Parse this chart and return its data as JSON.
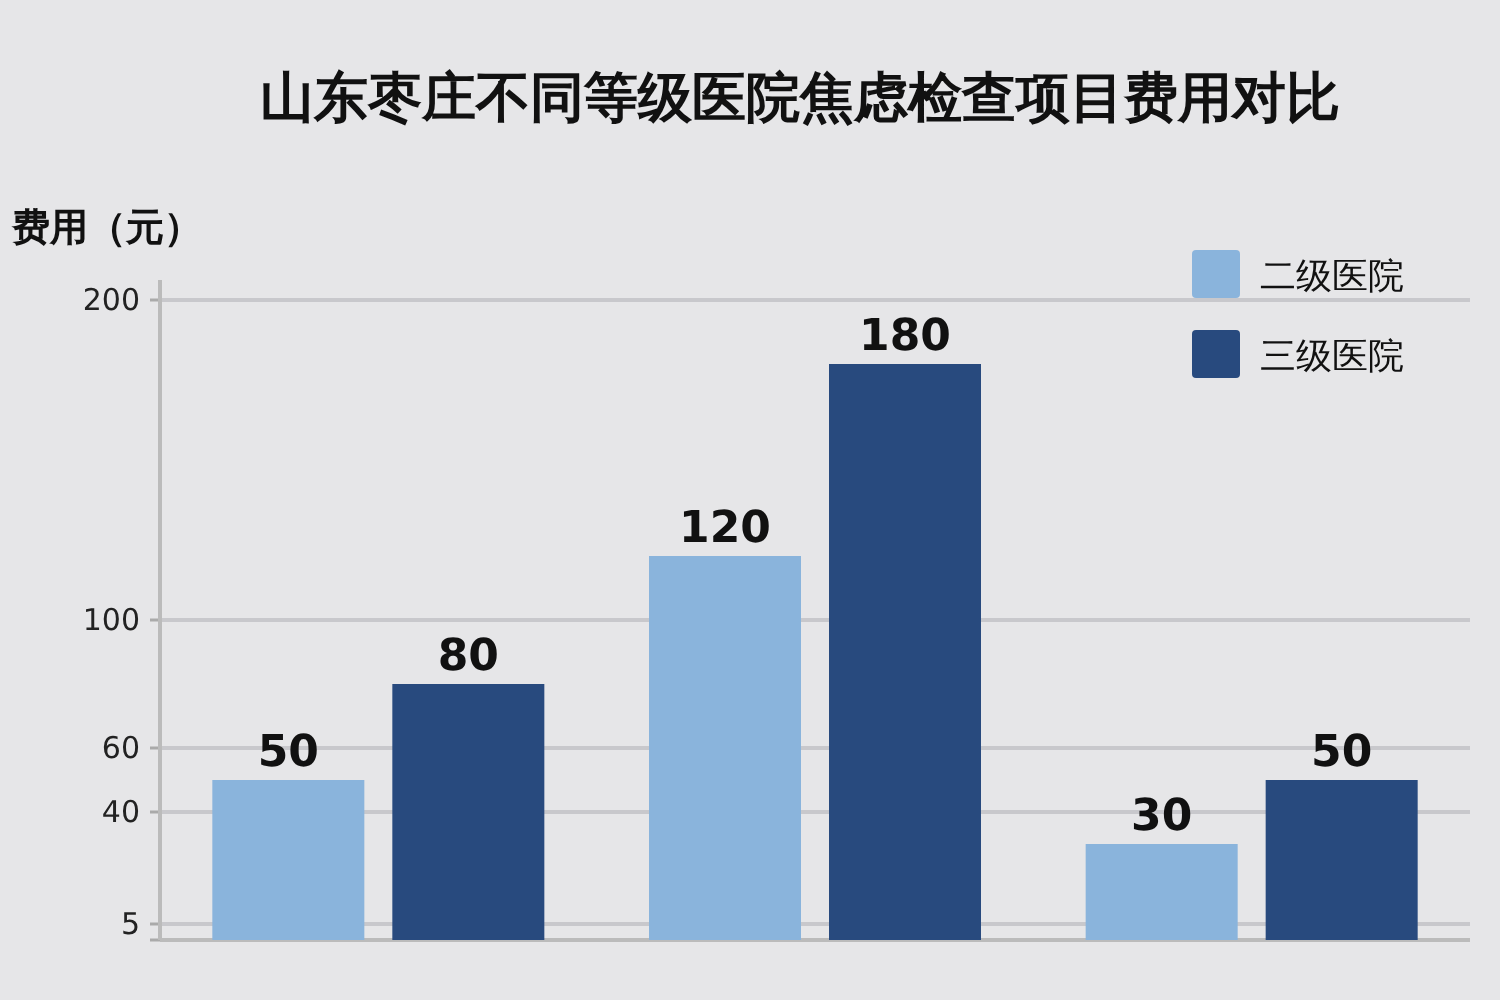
{
  "chart_data": {
    "type": "bar",
    "title": "山东枣庄不同等级医院焦虑检查项目费用对比",
    "ylabel": "费用（元）",
    "categories": [
      null,
      null,
      null
    ],
    "series": [
      {
        "name": "二级医院",
        "color": "#8ab4dc",
        "values": [
          50,
          120,
          30
        ]
      },
      {
        "name": "三级医院",
        "color": "#284a7e",
        "values": [
          80,
          180,
          50
        ]
      }
    ],
    "ylim": [
      0,
      200
    ],
    "yticks": [
      {
        "value": 0,
        "label": null
      },
      5,
      40,
      60,
      100,
      200
    ],
    "grid": "y",
    "legend": "top right",
    "data_labels": true
  }
}
